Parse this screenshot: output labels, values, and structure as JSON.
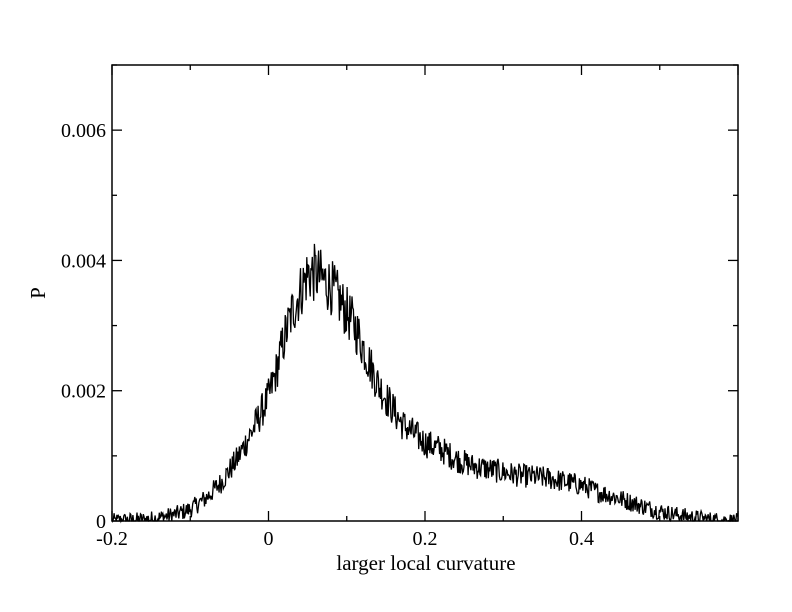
{
  "chart_data": {
    "type": "line",
    "title": "",
    "xlabel": "larger local curvature",
    "ylabel": "P",
    "xlim": [
      -0.2,
      0.6
    ],
    "ylim": [
      0,
      0.007
    ],
    "x_ticks": [
      -0.2,
      0,
      0.2,
      0.4
    ],
    "x_tick_labels": [
      "-0.2",
      "0",
      "0.2",
      "0.4"
    ],
    "y_ticks": [
      0,
      0.002,
      0.004,
      0.006
    ],
    "y_tick_labels": [
      "0",
      "0.002",
      "0.004",
      "0.006"
    ],
    "grid": false,
    "legend": "none",
    "line_color": "#000000",
    "series": [
      {
        "x": [
          -0.2,
          -0.18,
          -0.16,
          -0.14,
          -0.12,
          -0.1,
          -0.08,
          -0.06,
          -0.04,
          -0.02,
          0.0,
          0.01,
          0.02,
          0.03,
          0.04,
          0.05,
          0.06,
          0.07,
          0.08,
          0.09,
          0.1,
          0.11,
          0.12,
          0.13,
          0.14,
          0.15,
          0.16,
          0.17,
          0.18,
          0.2,
          0.22,
          0.24,
          0.26,
          0.28,
          0.3,
          0.32,
          0.34,
          0.36,
          0.38,
          0.4,
          0.42,
          0.44,
          0.46,
          0.48,
          0.5,
          0.52,
          0.54,
          0.56,
          0.58,
          0.6
        ],
        "values": [
          0.0,
          1e-05,
          2e-05,
          5e-05,
          0.0001,
          0.00018,
          0.00035,
          0.0006,
          0.00095,
          0.0014,
          0.0019,
          0.0023,
          0.0028,
          0.0032,
          0.0035,
          0.0038,
          0.0038,
          0.0037,
          0.0036,
          0.0034,
          0.0032,
          0.003,
          0.0027,
          0.0024,
          0.0021,
          0.0019,
          0.0017,
          0.0015,
          0.0014,
          0.0012,
          0.0011,
          0.00095,
          0.00085,
          0.0008,
          0.00075,
          0.0007,
          0.00068,
          0.00065,
          0.0006,
          0.00055,
          0.00045,
          0.00038,
          0.0003,
          0.00022,
          0.00015,
          0.0001,
          6e-05,
          3e-05,
          1e-05,
          0.0
        ]
      }
    ]
  }
}
